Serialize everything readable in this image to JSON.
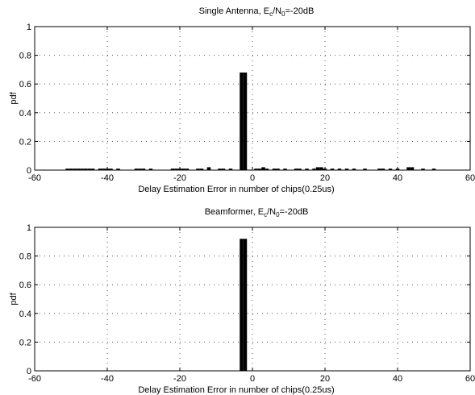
{
  "chart_data": [
    {
      "type": "bar",
      "title": "Single Antenna, E_c/N_0=-20dB",
      "title_parts": {
        "pre": "Single Antenna, E",
        "sub1": "c",
        "mid": "/N",
        "sub2": "0",
        "post": "=-20dB"
      },
      "xlabel": "Delay Estimation Error in number of chips(0.25us)",
      "ylabel": "pdf",
      "xlim": [
        -60,
        60
      ],
      "ylim": [
        0,
        1
      ],
      "xticks": [
        -60,
        -40,
        -20,
        0,
        20,
        40,
        60
      ],
      "yticks": [
        0,
        0.2,
        0.4,
        0.6,
        0.8,
        1
      ],
      "xticklabels": [
        "-60",
        "-40",
        "-20",
        "0",
        "20",
        "40",
        "60"
      ],
      "yticklabels": [
        "0",
        "0.2",
        "0.4",
        "0.6",
        "0.8",
        "1"
      ],
      "grid": "dotted",
      "x": [
        -51,
        -50,
        -49,
        -48,
        -47,
        -46,
        -45,
        -44,
        -42,
        -41,
        -40,
        -39,
        -37,
        -32,
        -31,
        -30,
        -28,
        -22,
        -21,
        -20,
        -19,
        -18,
        -15,
        -14,
        -12,
        -9,
        -8,
        -6,
        -3,
        -2,
        1,
        2,
        3,
        4,
        6,
        7,
        9,
        12,
        13,
        15,
        17,
        18,
        19,
        20,
        22,
        24,
        26,
        28,
        31,
        35,
        36,
        38,
        40,
        43,
        44,
        47,
        50
      ],
      "values": [
        0.01,
        0.01,
        0.01,
        0.01,
        0.01,
        0.01,
        0.01,
        0.01,
        0.01,
        0.01,
        0.01,
        0.01,
        0.01,
        0.01,
        0.01,
        0.01,
        0.01,
        0.01,
        0.01,
        0.01,
        0.01,
        0.01,
        0.01,
        0.01,
        0.02,
        0.01,
        0.01,
        0.01,
        0.68,
        0.68,
        0.01,
        0.01,
        0.02,
        0.01,
        0.01,
        0.01,
        0.01,
        0.01,
        0.01,
        0.01,
        0.01,
        0.02,
        0.02,
        0.01,
        0.01,
        0.01,
        0.01,
        0.01,
        0.01,
        0.01,
        0.01,
        0.01,
        0.01,
        0.02,
        0.02,
        0.01,
        0.01
      ]
    },
    {
      "type": "bar",
      "title": "Beamformer, E_c/N_0=-20dB",
      "title_parts": {
        "pre": "Beamformer, E",
        "sub1": "c",
        "mid": "/N",
        "sub2": "0",
        "post": "=-20dB"
      },
      "xlabel": "Delay Estimation Error in number of chips(0.25us)",
      "ylabel": "pdf",
      "xlim": [
        -60,
        60
      ],
      "ylim": [
        0,
        1
      ],
      "xticks": [
        -60,
        -40,
        -20,
        0,
        20,
        40,
        60
      ],
      "yticks": [
        0,
        0.2,
        0.4,
        0.6,
        0.8,
        1
      ],
      "xticklabels": [
        "-60",
        "-40",
        "-20",
        "0",
        "20",
        "40",
        "60"
      ],
      "yticklabels": [
        "0",
        "0.2",
        "0.4",
        "0.6",
        "0.8",
        "1"
      ],
      "grid": "dotted",
      "x": [
        -3,
        -2
      ],
      "values": [
        0.92,
        0.92
      ]
    }
  ],
  "bar_color": "#000000",
  "grid_color": "#555555"
}
